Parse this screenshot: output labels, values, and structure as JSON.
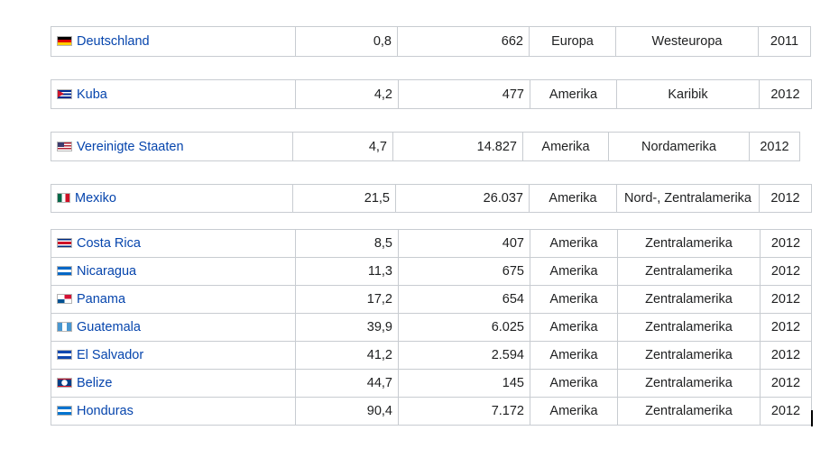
{
  "groups": [
    {
      "rows": [
        {
          "country": "Deutschland",
          "flag_icon": "germany-flag-icon",
          "value1": "0,8",
          "value2": "662",
          "continent": "Europa",
          "region": "Westeuropa",
          "year": "2011"
        }
      ]
    },
    {
      "rows": [
        {
          "country": "Kuba",
          "flag_icon": "cuba-flag-icon",
          "value1": "4,2",
          "value2": "477",
          "continent": "Amerika",
          "region": "Karibik",
          "year": "2012"
        }
      ]
    },
    {
      "rows": [
        {
          "country": "Vereinigte Staaten",
          "flag_icon": "usa-flag-icon",
          "value1": "4,7",
          "value2": "14.827",
          "continent": "Amerika",
          "region": "Nordamerika",
          "year": "2012"
        }
      ]
    },
    {
      "rows": [
        {
          "country": "Mexiko",
          "flag_icon": "mexico-flag-icon",
          "value1": "21,5",
          "value2": "26.037",
          "continent": "Amerika",
          "region": "Nord-, Zentralamerika",
          "year": "2012"
        }
      ]
    },
    {
      "rows": [
        {
          "country": "Costa Rica",
          "flag_icon": "costa-rica-flag-icon",
          "value1": "8,5",
          "value2": "407",
          "continent": "Amerika",
          "region": "Zentralamerika",
          "year": "2012"
        },
        {
          "country": "Nicaragua",
          "flag_icon": "nicaragua-flag-icon",
          "value1": "11,3",
          "value2": "675",
          "continent": "Amerika",
          "region": "Zentralamerika",
          "year": "2012"
        },
        {
          "country": "Panama",
          "flag_icon": "panama-flag-icon",
          "value1": "17,2",
          "value2": "654",
          "continent": "Amerika",
          "region": "Zentralamerika",
          "year": "2012"
        },
        {
          "country": "Guatemala",
          "flag_icon": "guatemala-flag-icon",
          "value1": "39,9",
          "value2": "6.025",
          "continent": "Amerika",
          "region": "Zentralamerika",
          "year": "2012"
        },
        {
          "country": "El Salvador",
          "flag_icon": "el-salvador-flag-icon",
          "value1": "41,2",
          "value2": "2.594",
          "continent": "Amerika",
          "region": "Zentralamerika",
          "year": "2012"
        },
        {
          "country": "Belize",
          "flag_icon": "belize-flag-icon",
          "value1": "44,7",
          "value2": "145",
          "continent": "Amerika",
          "region": "Zentralamerika",
          "year": "2012"
        },
        {
          "country": "Honduras",
          "flag_icon": "honduras-flag-icon",
          "value1": "90,4",
          "value2": "7.172",
          "continent": "Amerika",
          "region": "Zentralamerika",
          "year": "2012"
        }
      ]
    }
  ]
}
